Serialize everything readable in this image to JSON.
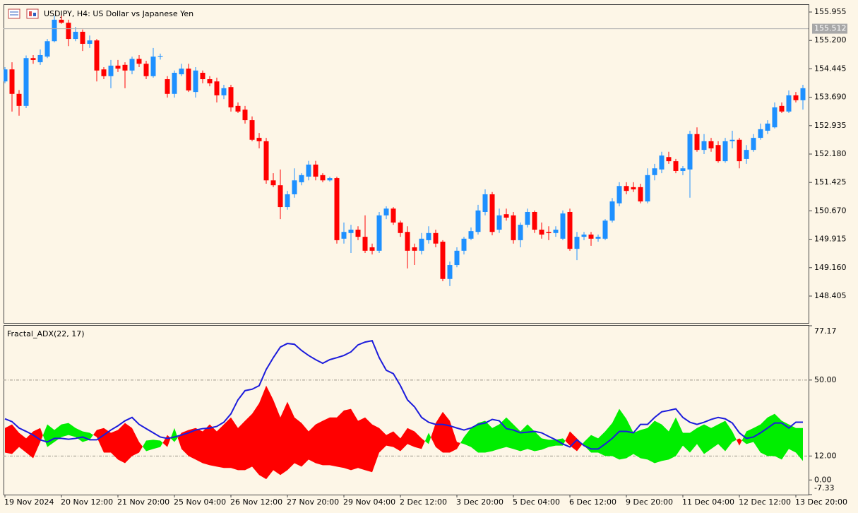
{
  "chart_data": [
    {
      "type": "candlestick",
      "title": "USDJPY, H4:  US Dollar vs Japanese Yen",
      "categories": [
        "19 Nov 2024",
        null,
        null,
        null,
        null,
        null,
        null,
        null,
        "20 Nov 12:00",
        null,
        null,
        null,
        null,
        null,
        null,
        null,
        "21 Nov 20:00",
        null,
        null,
        null,
        null,
        null,
        null,
        null,
        "25 Nov 04:00",
        null,
        null,
        null,
        null,
        null,
        null,
        null,
        "26 Nov 12:00",
        null,
        null,
        null,
        null,
        null,
        null,
        null,
        "27 Nov 20:00",
        null,
        null,
        null,
        null,
        null,
        null,
        null,
        "29 Nov 04:00",
        null,
        null,
        null,
        null,
        null,
        null,
        null,
        "2 Dec 12:00",
        null,
        null,
        null,
        null,
        null,
        null,
        null,
        "3 Dec 20:00",
        null,
        null,
        null,
        null,
        null,
        null,
        null,
        "5 Dec 04:00",
        null,
        null,
        null,
        null,
        null,
        null,
        null,
        "6 Dec 12:00",
        null,
        null,
        null,
        null,
        null,
        null,
        null,
        "9 Dec 20:00",
        null,
        null,
        null,
        null,
        null,
        null,
        null,
        "11 Dec 04:00",
        null,
        null,
        null,
        null,
        null,
        null,
        null,
        "12 Dec 12:00",
        null,
        null,
        null,
        null,
        null,
        null,
        null,
        "13 Dec 20:00",
        null
      ],
      "open": [
        154.11,
        154.43,
        153.78,
        153.46,
        154.73,
        154.62,
        154.77,
        155.18,
        155.75,
        155.67,
        155.24,
        155.43,
        155.11,
        155.2,
        154.43,
        154.25,
        154.53,
        154.55,
        154.4,
        154.71,
        154.58,
        154.25,
        154.77,
        154.17,
        153.78,
        154.3,
        154.45,
        153.83,
        154.34,
        154.17,
        154.11,
        153.74,
        153.96,
        153.46,
        153.36,
        153.08,
        152.61,
        152.52,
        151.48,
        151.35,
        150.77,
        151.11,
        151.43,
        151.58,
        151.9,
        151.62,
        151.48,
        151.54,
        149.93,
        150.08,
        150.17,
        149.98,
        149.7,
        149.61,
        150.55,
        150.73,
        150.36,
        150.11,
        149.7,
        149.61,
        149.89,
        150.08,
        149.85,
        148.86,
        149.23,
        149.61,
        149.93,
        150.11,
        150.64,
        151.11,
        150.17,
        150.58,
        150.55,
        149.89,
        150.3,
        150.64,
        150.17,
        150.11,
        150.08,
        149.93,
        150.64,
        149.66,
        149.98,
        150.04,
        149.93,
        149.93,
        150.41,
        150.87,
        151.33,
        151.3,
        151.3,
        150.92,
        151.62,
        151.77,
        152.1,
        151.99,
        151.73,
        151.77,
        152.71,
        152.29,
        152.52,
        152.42,
        151.99,
        152.52,
        152.56,
        152.05,
        152.29,
        152.61,
        152.8,
        152.89,
        153.46,
        153.31,
        153.74,
        153.61
      ],
      "high": [
        154.49,
        154.62,
        153.88,
        154.8,
        154.81,
        154.96,
        155.24,
        155.86,
        155.86,
        155.75,
        155.56,
        155.49,
        155.33,
        155.24,
        154.49,
        154.68,
        154.68,
        154.62,
        154.77,
        154.81,
        154.66,
        155.0,
        154.85,
        154.25,
        154.4,
        154.58,
        154.58,
        154.49,
        154.4,
        154.25,
        154.21,
        154.02,
        154.02,
        153.55,
        153.46,
        153.18,
        152.74,
        152.61,
        151.67,
        151.77,
        151.2,
        151.8,
        151.67,
        152.0,
        152.0,
        151.67,
        151.58,
        151.58,
        150.36,
        150.3,
        150.26,
        150.55,
        149.8,
        150.64,
        150.79,
        150.77,
        150.41,
        150.26,
        149.8,
        150.08,
        150.26,
        150.17,
        149.89,
        149.32,
        149.7,
        149.98,
        150.23,
        150.83,
        151.24,
        151.17,
        150.73,
        150.73,
        150.64,
        150.36,
        150.73,
        150.68,
        150.36,
        150.26,
        150.26,
        150.68,
        150.73,
        150.11,
        150.11,
        150.11,
        150.04,
        150.45,
        151.01,
        151.43,
        151.43,
        151.43,
        151.39,
        151.8,
        151.92,
        152.24,
        152.24,
        152.05,
        151.86,
        152.8,
        152.89,
        152.71,
        152.61,
        152.52,
        152.61,
        152.8,
        152.61,
        152.42,
        152.71,
        152.99,
        153.08,
        153.55,
        153.55,
        153.87,
        153.83,
        154.02
      ],
      "low": [
        154.06,
        153.31,
        153.2,
        153.4,
        154.58,
        154.55,
        154.73,
        155.15,
        155.64,
        155.05,
        155.18,
        154.92,
        155.0,
        154.11,
        154.17,
        153.93,
        154.36,
        153.93,
        154.3,
        154.49,
        154.17,
        154.21,
        154.69,
        153.68,
        153.68,
        154.25,
        153.83,
        153.68,
        154.06,
        153.98,
        153.55,
        153.64,
        153.31,
        153.27,
        152.99,
        152.52,
        152.33,
        151.39,
        151.3,
        150.45,
        150.7,
        151.02,
        151.35,
        151.48,
        151.48,
        151.43,
        151.45,
        149.8,
        149.8,
        149.55,
        149.89,
        149.55,
        149.51,
        149.55,
        150.45,
        150.3,
        149.98,
        149.14,
        149.23,
        149.51,
        149.8,
        149.7,
        148.8,
        148.67,
        149.17,
        149.51,
        149.89,
        150.04,
        150.55,
        150.02,
        150.08,
        150.41,
        149.8,
        149.7,
        150.23,
        150.08,
        149.93,
        149.89,
        149.98,
        149.89,
        149.61,
        149.36,
        149.89,
        149.74,
        149.85,
        149.89,
        150.36,
        150.79,
        151.11,
        151.17,
        150.87,
        150.87,
        151.48,
        151.67,
        151.92,
        151.67,
        151.62,
        151.02,
        152.24,
        152.18,
        152.24,
        151.95,
        151.95,
        152.33,
        151.8,
        151.92,
        152.24,
        152.56,
        152.71,
        152.86,
        153.27,
        153.27,
        153.55,
        153.36
      ],
      "close": [
        154.43,
        153.78,
        153.46,
        154.73,
        154.68,
        154.81,
        155.18,
        155.75,
        155.67,
        155.24,
        155.43,
        155.11,
        155.2,
        154.4,
        154.25,
        154.53,
        154.45,
        154.4,
        154.71,
        154.58,
        154.25,
        154.77,
        154.79,
        153.78,
        154.34,
        154.45,
        153.87,
        154.4,
        154.17,
        154.06,
        153.74,
        153.93,
        153.42,
        153.31,
        153.08,
        152.56,
        152.52,
        151.48,
        151.35,
        150.77,
        151.11,
        151.48,
        151.62,
        151.9,
        151.58,
        151.48,
        151.54,
        149.89,
        150.11,
        150.17,
        149.98,
        149.61,
        149.61,
        150.55,
        150.73,
        150.36,
        150.08,
        149.61,
        149.61,
        149.93,
        150.08,
        149.8,
        148.86,
        149.23,
        149.61,
        149.93,
        150.13,
        150.68,
        151.11,
        150.11,
        150.55,
        150.49,
        149.89,
        150.3,
        150.64,
        150.17,
        150.04,
        150.08,
        150.17,
        150.6,
        149.66,
        149.98,
        150.04,
        149.93,
        149.98,
        150.41,
        150.92,
        151.33,
        151.2,
        151.24,
        150.92,
        151.62,
        151.8,
        152.14,
        151.99,
        151.73,
        151.8,
        152.71,
        152.29,
        152.52,
        152.33,
        151.99,
        152.52,
        152.56,
        151.99,
        152.29,
        152.61,
        152.84,
        152.99,
        153.42,
        153.31,
        153.74,
        153.61,
        153.93
      ],
      "up_color": "#1e90ff",
      "down_color": "#ff0000",
      "last_price": 155.512,
      "ylim": [
        147.691,
        156.143
      ],
      "yticks": [
        155.955,
        {
          "value": 155.2,
          "label": "155.200"
        },
        154.445,
        {
          "value": 153.69,
          "label": "153.690"
        },
        152.935,
        {
          "value": 152.18,
          "label": "152.180"
        },
        151.425,
        {
          "value": 150.67,
          "label": "150.670"
        },
        149.915,
        {
          "value": 149.16,
          "label": "149.160"
        },
        148.405
      ]
    },
    {
      "type": "line",
      "title": "Fractal_ADX(22, 17)",
      "series": [
        {
          "color": "#1c1cdc",
          "values": [
            30.6,
            29.2,
            26.0,
            24.3,
            22.5,
            20.1,
            19.0,
            20.8,
            20.8,
            20.4,
            20.8,
            21.5,
            20.1,
            20.1,
            22.5,
            25.0,
            27.1,
            29.6,
            31.3,
            27.8,
            25.7,
            23.6,
            21.5,
            20.8,
            21.5,
            22.5,
            23.6,
            25.0,
            25.7,
            26.0,
            26.8,
            28.9,
            33.1,
            40.1,
            44.7,
            45.4,
            47.2,
            55.3,
            61.2,
            66.5,
            68.3,
            67.9,
            64.8,
            62.3,
            60.2,
            58.4,
            60.2,
            61.2,
            62.3,
            64.1,
            67.6,
            69.0,
            69.7,
            61.2,
            54.9,
            53.2,
            47.2,
            40.1,
            36.6,
            31.3,
            28.9,
            27.8,
            27.8,
            27.1,
            26.0,
            25.0,
            26.0,
            27.8,
            28.5,
            30.3,
            29.6,
            25.7,
            25.0,
            23.6,
            23.9,
            24.3,
            23.6,
            21.8,
            20.1,
            18.0,
            16.5,
            20.1,
            17.2,
            15.5,
            15.5,
            18.0,
            20.8,
            24.3,
            24.3,
            23.6,
            27.8,
            27.8,
            31.3,
            34.1,
            34.8,
            35.6,
            31.3,
            28.9,
            27.8,
            28.9,
            30.3,
            31.3,
            30.6,
            28.5,
            23.6,
            20.8,
            21.5,
            23.6,
            26.0,
            28.5,
            28.5,
            26.0,
            28.9,
            28.9
          ]
        },
        {
          "values": [
            26.0,
            27.8,
            23.6,
            20.8,
            24.3,
            26.0,
            16.5,
            19.0,
            21.5,
            22.5,
            21.5,
            19.0,
            20.1,
            25.0,
            26.0,
            23.6,
            25.0,
            28.5,
            26.0,
            19.0,
            14.4,
            15.5,
            16.5,
            22.5,
            19.0,
            23.6,
            25.0,
            26.0,
            24.3,
            27.8,
            24.3,
            27.8,
            31.3,
            26.0,
            29.6,
            33.1,
            38.4,
            47.2,
            40.1,
            31.3,
            39.1,
            31.3,
            28.5,
            24.3,
            27.8,
            29.6,
            31.3,
            31.3,
            34.8,
            35.6,
            29.6,
            31.3,
            27.8,
            26.0,
            22.5,
            24.3,
            20.8,
            26.0,
            24.3,
            20.8,
            18.0,
            28.5,
            34.1,
            29.6,
            19.0,
            18.0,
            16.5,
            13.7,
            13.7,
            14.4,
            15.5,
            16.5,
            15.5,
            14.4,
            15.5,
            14.4,
            15.1,
            16.5,
            17.2,
            17.2,
            24.3,
            20.8,
            17.2,
            13.7,
            13.7,
            12.0,
            12.0,
            10.2,
            10.9,
            13.0,
            10.9,
            10.2,
            8.4,
            9.5,
            10.2,
            12.0,
            17.2,
            13.7,
            18.0,
            13.0,
            15.5,
            18.0,
            14.4,
            19.0,
            20.8,
            18.0,
            19.0,
            13.7,
            12.0,
            12.0,
            10.2,
            15.5,
            13.7,
            9.5
          ]
        },
        {
          "values": [
            13.7,
            13.0,
            16.5,
            13.7,
            10.9,
            19.0,
            27.8,
            25.0,
            27.8,
            28.5,
            26.0,
            24.3,
            23.6,
            21.5,
            13.7,
            13.7,
            10.2,
            8.4,
            12.0,
            13.7,
            19.7,
            20.1,
            19.7,
            16.5,
            26.0,
            15.5,
            12.0,
            10.2,
            8.4,
            7.4,
            6.7,
            6.0,
            6.0,
            4.9,
            4.9,
            6.7,
            2.5,
            0.4,
            4.9,
            2.5,
            4.9,
            8.4,
            6.7,
            10.2,
            8.4,
            7.4,
            7.4,
            6.7,
            6.0,
            4.9,
            6.0,
            4.9,
            3.9,
            13.7,
            17.2,
            16.5,
            14.4,
            18.0,
            16.5,
            15.5,
            23.6,
            16.5,
            13.7,
            13.7,
            15.5,
            21.5,
            26.0,
            28.5,
            29.6,
            26.0,
            27.8,
            31.3,
            27.8,
            24.3,
            27.8,
            24.3,
            20.8,
            20.1,
            20.1,
            20.8,
            17.2,
            14.4,
            19.0,
            22.5,
            20.8,
            24.3,
            28.5,
            35.6,
            30.6,
            23.6,
            25.0,
            26.0,
            29.6,
            27.8,
            24.3,
            31.3,
            23.6,
            23.6,
            26.0,
            27.8,
            26.0,
            27.8,
            29.6,
            24.3,
            17.2,
            24.3,
            26.0,
            27.8,
            31.3,
            33.1,
            29.6,
            27.8,
            26.0,
            26.0
          ]
        }
      ],
      "band_colors": [
        "#ff0000",
        "#00ee00"
      ],
      "levels": [
        50,
        12
      ],
      "ylim": [
        -7.33,
        77.17
      ],
      "yticks": [
        77.17,
        {
          "value": 50,
          "label": "50.00"
        },
        {
          "value": 12,
          "label": "12.00"
        },
        {
          "value": 0,
          "label": "0.00"
        },
        -7.33
      ]
    }
  ]
}
